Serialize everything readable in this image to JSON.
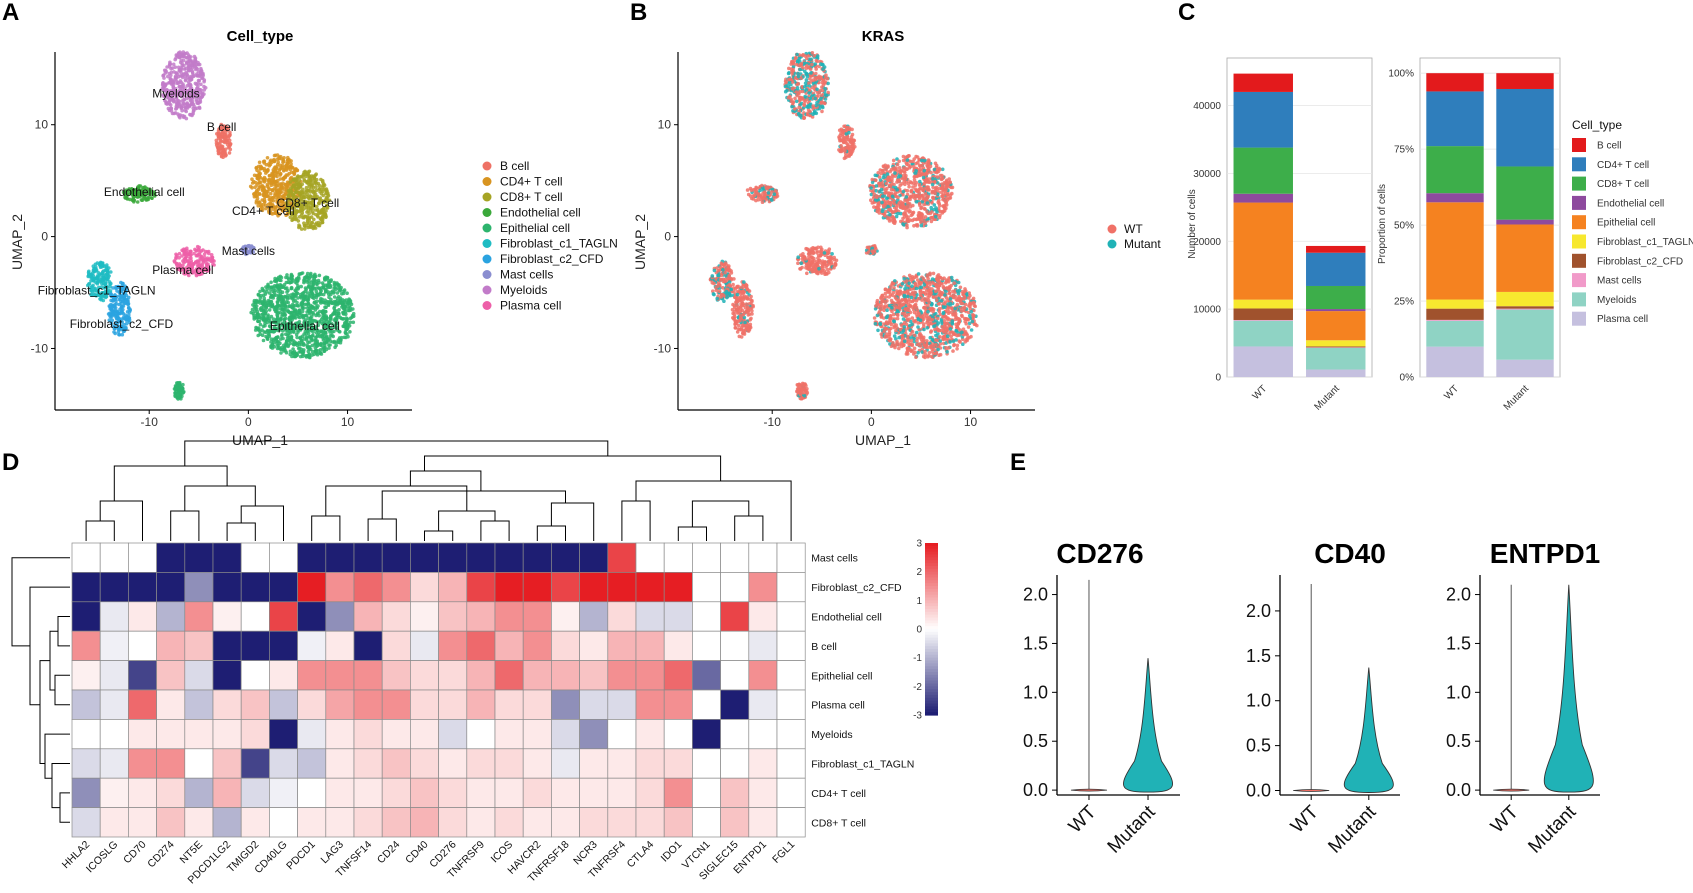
{
  "panels": {
    "a": "A",
    "b": "B",
    "c": "C",
    "d": "D",
    "e": "E"
  },
  "colors": {
    "B cell": "#e31a1c",
    "CD4+ T cell": "#2f7ebc",
    "CD8+ T cell": "#3dae4a",
    "Endothelial cell": "#8e4a9e",
    "Epithelial cell": "#f58220",
    "Fibroblast_c1_TAGLN": "#f7e82f",
    "Fibroblast_c2_CFD": "#a0522d",
    "Mast cells": "#f19ac9",
    "Myeloids": "#8fd3c4",
    "Plasma cell": "#c5c0df",
    "WT": "#f07167",
    "Mutant": "#20b2b6",
    "umap_B cell": "#ee7165",
    "umap_CD4+ T cell": "#d89420",
    "umap_CD8+ T cell": "#a6a424",
    "umap_Endothelial cell": "#3aa83a",
    "umap_Epithelial cell": "#2db46d",
    "umap_Fibroblast_c1_TAGLN": "#1fbcc3",
    "umap_Fibroblast_c2_CFD": "#2aa3e0",
    "umap_Mast cells": "#8a8ed0",
    "umap_Myeloids": "#c27bc9",
    "umap_Plasma cell": "#ed5fa8"
  },
  "chart_data": [
    {
      "id": "A",
      "type": "scatter",
      "title": "Cell_type",
      "xlabel": "UMAP_1",
      "ylabel": "UMAP_2",
      "xlim": [
        -19.5,
        16.5
      ],
      "ylim": [
        -15.5,
        16.5
      ],
      "xticks": [
        -10,
        0,
        10
      ],
      "yticks": [
        -10,
        0,
        10
      ],
      "legend": [
        "B cell",
        "CD4+ T cell",
        "CD8+ T cell",
        "Endothelial cell",
        "Epithelial cell",
        "Fibroblast_c1_TAGLN",
        "Fibroblast_c2_CFD",
        "Mast cells",
        "Myeloids",
        "Plasma cell"
      ],
      "clusters": [
        {
          "type": "Myeloids",
          "x": -6.5,
          "y": 13.5,
          "rx": 2.2,
          "ry": 3.0
        },
        {
          "type": "B cell",
          "x": -2.5,
          "y": 8.5,
          "rx": 0.8,
          "ry": 1.5
        },
        {
          "type": "CD4+ T cell",
          "x": 2.8,
          "y": 4.5,
          "rx": 2.5,
          "ry": 2.8
        },
        {
          "type": "CD8+ T cell",
          "x": 6.0,
          "y": 3.2,
          "rx": 2.2,
          "ry": 2.6
        },
        {
          "type": "Endothelial cell",
          "x": -11.0,
          "y": 3.8,
          "rx": 1.6,
          "ry": 0.7
        },
        {
          "type": "Mast cells",
          "x": 0.0,
          "y": -1.2,
          "rx": 0.6,
          "ry": 0.4
        },
        {
          "type": "Plasma cell",
          "x": -5.5,
          "y": -2.2,
          "rx": 2.0,
          "ry": 1.3
        },
        {
          "type": "Fibroblast_c1_TAGLN",
          "x": -15.0,
          "y": -4.0,
          "rx": 1.2,
          "ry": 1.8
        },
        {
          "type": "Fibroblast_c2_CFD",
          "x": -13.0,
          "y": -6.5,
          "rx": 1.1,
          "ry": 2.5
        },
        {
          "type": "Epithelial cell",
          "x": 5.5,
          "y": -7.0,
          "rx": 5.2,
          "ry": 3.8
        },
        {
          "type": "Epithelial cell",
          "x": -7.0,
          "y": -13.8,
          "rx": 0.5,
          "ry": 0.8
        }
      ],
      "labels": [
        {
          "text": "Myeloids",
          "x": -7.3,
          "y": 12.8
        },
        {
          "text": "B cell",
          "x": -2.7,
          "y": 9.8
        },
        {
          "text": "Endothelial cell",
          "x": -10.5,
          "y": 4.0
        },
        {
          "text": "CD8+ T cell",
          "x": 6.0,
          "y": 3.0
        },
        {
          "text": "CD4+ T cell",
          "x": 1.5,
          "y": 2.3
        },
        {
          "text": "Mast cells",
          "x": 0.0,
          "y": -1.3
        },
        {
          "text": "Plasma cell",
          "x": -6.6,
          "y": -3.0
        },
        {
          "text": "Fibroblast_c1_TAGLN",
          "x": -15.3,
          "y": -4.8
        },
        {
          "text": "Fibroblast_c2_CFD",
          "x": -12.8,
          "y": -7.8
        },
        {
          "text": "Epithelial cell",
          "x": 5.7,
          "y": -8.0
        }
      ]
    },
    {
      "id": "B",
      "type": "scatter",
      "title": "KRAS",
      "xlabel": "UMAP_1",
      "ylabel": "UMAP_2",
      "xlim": [
        -19.5,
        16.5
      ],
      "ylim": [
        -15.5,
        16.5
      ],
      "xticks": [
        -10,
        0,
        10
      ],
      "yticks": [
        -10,
        0,
        10
      ],
      "legend": [
        "WT",
        "Mutant"
      ],
      "clusters": [
        {
          "type": "WT",
          "x": -6.5,
          "y": 13.5,
          "rx": 2.2,
          "ry": 3.0,
          "mix": 0.45
        },
        {
          "type": "WT",
          "x": -2.5,
          "y": 8.5,
          "rx": 0.8,
          "ry": 1.5,
          "mix": 0.05
        },
        {
          "type": "WT",
          "x": 4.0,
          "y": 4.0,
          "rx": 4.2,
          "ry": 3.2,
          "mix": 0.2
        },
        {
          "type": "WT",
          "x": -11.0,
          "y": 3.8,
          "rx": 1.6,
          "ry": 0.7,
          "mix": 0.3
        },
        {
          "type": "WT",
          "x": 0.0,
          "y": -1.2,
          "rx": 0.6,
          "ry": 0.4,
          "mix": 0.1
        },
        {
          "type": "WT",
          "x": -5.5,
          "y": -2.2,
          "rx": 2.0,
          "ry": 1.3,
          "mix": 0.05
        },
        {
          "type": "WT",
          "x": -15.0,
          "y": -4.0,
          "rx": 1.2,
          "ry": 1.8,
          "mix": 0.4
        },
        {
          "type": "WT",
          "x": -13.0,
          "y": -6.5,
          "rx": 1.1,
          "ry": 2.5,
          "mix": 0.1
        },
        {
          "type": "WT",
          "x": 5.5,
          "y": -7.0,
          "rx": 5.2,
          "ry": 3.8,
          "mix": 0.25
        },
        {
          "type": "WT",
          "x": -7.0,
          "y": -13.8,
          "rx": 0.5,
          "ry": 0.8,
          "mix": 0.05
        }
      ]
    },
    {
      "id": "C1",
      "type": "bar",
      "stacked": true,
      "categories": [
        "WT",
        "Mutant"
      ],
      "ylabel": "Number of cells",
      "ylim": [
        0,
        47000
      ],
      "yticks": [
        0,
        10000,
        20000,
        30000,
        40000
      ],
      "series": [
        {
          "name": "Plasma cell",
          "values": [
            4500,
            1100
          ]
        },
        {
          "name": "Myeloids",
          "values": [
            3800,
            3200
          ]
        },
        {
          "name": "Mast cells",
          "values": [
            100,
            60
          ]
        },
        {
          "name": "Fibroblast_c2_CFD",
          "values": [
            1700,
            150
          ]
        },
        {
          "name": "Fibroblast_c1_TAGLN",
          "values": [
            1300,
            900
          ]
        },
        {
          "name": "Epithelial cell",
          "values": [
            14300,
            4300
          ]
        },
        {
          "name": "Endothelial cell",
          "values": [
            1300,
            300
          ]
        },
        {
          "name": "CD8+ T cell",
          "values": [
            6800,
            3400
          ]
        },
        {
          "name": "CD4+ T cell",
          "values": [
            8200,
            4900
          ]
        },
        {
          "name": "B cell",
          "values": [
            2700,
            1000
          ]
        }
      ]
    },
    {
      "id": "C2",
      "type": "bar",
      "stacked": true,
      "categories": [
        "WT",
        "Mutant"
      ],
      "ylabel": "Proportion of cells",
      "ylim": [
        0,
        1.05
      ],
      "yticks": [
        0,
        0.25,
        0.5,
        0.75,
        1.0
      ],
      "ytick_labels": [
        "0%",
        "25%",
        "50%",
        "75%",
        "100%"
      ],
      "legend_title": "Cell_type",
      "legend": [
        "B cell",
        "CD4+ T cell",
        "CD8+ T cell",
        "Endothelial cell",
        "Epithelial cell",
        "Fibroblast_c1_TAGLN",
        "Fibroblast_c2_CFD",
        "Mast cells",
        "Myeloids",
        "Plasma cell"
      ],
      "series": [
        {
          "name": "Plasma cell",
          "values": [
            0.1,
            0.057
          ]
        },
        {
          "name": "Myeloids",
          "values": [
            0.085,
            0.165
          ]
        },
        {
          "name": "Mast cells",
          "values": [
            0.003,
            0.003
          ]
        },
        {
          "name": "Fibroblast_c2_CFD",
          "values": [
            0.037,
            0.008
          ]
        },
        {
          "name": "Fibroblast_c1_TAGLN",
          "values": [
            0.03,
            0.047
          ]
        },
        {
          "name": "Epithelial cell",
          "values": [
            0.32,
            0.222
          ]
        },
        {
          "name": "Endothelial cell",
          "values": [
            0.03,
            0.016
          ]
        },
        {
          "name": "CD8+ T cell",
          "values": [
            0.155,
            0.175
          ]
        },
        {
          "name": "CD4+ T cell",
          "values": [
            0.18,
            0.255
          ]
        },
        {
          "name": "B cell",
          "values": [
            0.06,
            0.052
          ]
        }
      ]
    },
    {
      "id": "D",
      "type": "heatmap",
      "columns": [
        "HHLA2",
        "ICOSLG",
        "CD70",
        "CD274",
        "NT5E",
        "PDCD1LG2",
        "TMIGD2",
        "CD40LG",
        "PDCD1",
        "LAG3",
        "TNFSF14",
        "CD24",
        "CD40",
        "CD276",
        "TNFRSF9",
        "ICOS",
        "HAVCR2",
        "TNFRSF18",
        "NCR3",
        "TNFRSF4",
        "CTLA4",
        "IDO1",
        "VTCN1",
        "SIGLEC15",
        "ENTPD1",
        "FGL1"
      ],
      "rows": [
        "Mast cells",
        "Fibroblast_c2_CFD",
        "Endothelial cell",
        "B cell",
        "Epithelial cell",
        "Plasma cell",
        "Myeloids",
        "Fibroblast_c1_TAGLN",
        "CD4+ T cell",
        "CD8+ T cell"
      ],
      "colorbar_ticks": [
        3,
        2,
        1,
        0,
        -1,
        -2,
        -3
      ],
      "values": [
        [
          0.0,
          0.0,
          0.0,
          -3.0,
          -3.0,
          -3.0,
          0.0,
          0.0,
          -3.0,
          -3.0,
          -3.0,
          -3.0,
          -3.0,
          -3.0,
          -3.0,
          -3.0,
          -3.0,
          -3.0,
          -3.0,
          2.5,
          0.0,
          0.0,
          0.0,
          0.0,
          0.0,
          0.0
        ],
        [
          -3.0,
          -3.0,
          -3.0,
          -3.0,
          -1.5,
          -3.0,
          -3.0,
          -3.0,
          3.0,
          1.5,
          2.0,
          1.5,
          0.5,
          1.0,
          2.5,
          3.0,
          3.0,
          2.5,
          3.0,
          3.0,
          3.0,
          3.0,
          0.0,
          0.0,
          1.5,
          0.0
        ],
        [
          -3.0,
          -0.3,
          0.3,
          -1.0,
          1.5,
          0.2,
          0.0,
          2.5,
          -3.0,
          -1.5,
          1.0,
          0.5,
          0.2,
          0.8,
          1.0,
          1.5,
          1.5,
          0.2,
          -1.0,
          0.5,
          -0.5,
          -0.5,
          0.0,
          2.5,
          0.3,
          0.0
        ],
        [
          1.5,
          -0.2,
          0.0,
          1.0,
          0.8,
          -3.0,
          -3.0,
          -3.0,
          -0.2,
          0.3,
          -3.0,
          0.5,
          -0.3,
          1.5,
          2.0,
          1.0,
          1.5,
          0.5,
          0.3,
          1.0,
          1.0,
          0.3,
          0.0,
          0.0,
          -0.3,
          0.0
        ],
        [
          0.2,
          -0.3,
          -2.5,
          0.8,
          -0.5,
          -3.0,
          0.0,
          0.3,
          1.5,
          1.5,
          1.5,
          0.8,
          0.5,
          0.5,
          1.0,
          2.0,
          1.0,
          1.0,
          0.8,
          1.5,
          1.5,
          2.0,
          -2.0,
          0.0,
          1.5,
          0.0
        ],
        [
          -0.8,
          -0.3,
          2.0,
          0.3,
          -0.8,
          0.5,
          0.8,
          -0.8,
          0.5,
          1.2,
          1.5,
          1.5,
          0.5,
          0.5,
          1.0,
          0.5,
          0.5,
          -1.5,
          -0.5,
          -0.5,
          1.5,
          1.5,
          0.0,
          -3.0,
          -0.3,
          0.0
        ],
        [
          0.0,
          0.0,
          0.3,
          0.3,
          0.3,
          0.3,
          0.5,
          -3.0,
          -0.3,
          0.3,
          0.5,
          0.3,
          0.3,
          -0.5,
          0.0,
          0.3,
          0.3,
          -0.5,
          -1.5,
          0.0,
          0.3,
          0.0,
          -3.0,
          0.0,
          0.0,
          0.0
        ],
        [
          -0.5,
          -0.3,
          1.5,
          1.5,
          0.0,
          0.8,
          -2.5,
          -0.5,
          -0.8,
          0.3,
          0.5,
          0.8,
          0.5,
          0.3,
          0.5,
          0.5,
          0.3,
          -0.3,
          0.3,
          0.3,
          0.5,
          0.5,
          0.0,
          0.0,
          0.3,
          0.0
        ],
        [
          -1.5,
          0.2,
          0.3,
          0.5,
          -1.0,
          1.0,
          -0.5,
          -0.2,
          0.0,
          0.3,
          0.3,
          0.5,
          0.8,
          0.5,
          0.3,
          0.3,
          0.5,
          0.3,
          0.3,
          0.3,
          0.5,
          1.5,
          0.0,
          0.8,
          0.3,
          0.0
        ],
        [
          -0.5,
          0.3,
          0.3,
          0.8,
          0.3,
          -1.0,
          0.3,
          0.0,
          0.3,
          0.3,
          0.5,
          0.8,
          1.0,
          0.5,
          0.3,
          0.5,
          0.3,
          0.3,
          0.5,
          0.5,
          0.5,
          0.8,
          0.0,
          0.8,
          0.3,
          0.0
        ]
      ]
    },
    {
      "id": "E",
      "type": "violin",
      "categories": [
        "WT",
        "Mutant"
      ],
      "plots": [
        {
          "title": "CD276",
          "ylim": [
            -0.05,
            2.2
          ],
          "yticks": [
            0.0,
            0.5,
            1.0,
            1.5,
            2.0
          ],
          "ytick_labels": [
            "0.0",
            "0.5",
            "1.0",
            "1.5",
            "2.0"
          ],
          "wt_max": 2.15,
          "mutant_max": 1.35
        },
        {
          "title": "CD40",
          "ylim": [
            -0.05,
            2.4
          ],
          "yticks": [
            0.0,
            0.5,
            1.0,
            1.5,
            2.0
          ],
          "ytick_labels": [
            "0.0",
            "0.5",
            "1.0",
            "1.5",
            "2.0"
          ],
          "wt_max": 2.3,
          "mutant_max": 1.37
        },
        {
          "title": "ENTPD1",
          "ylim": [
            -0.05,
            2.2
          ],
          "yticks": [
            0.0,
            0.5,
            1.0,
            1.5,
            2.0
          ],
          "ytick_labels": [
            "0.0",
            "0.5",
            "1.0",
            "1.5",
            "2.0"
          ],
          "wt_max": 2.1,
          "mutant_max": 2.1
        }
      ]
    }
  ]
}
